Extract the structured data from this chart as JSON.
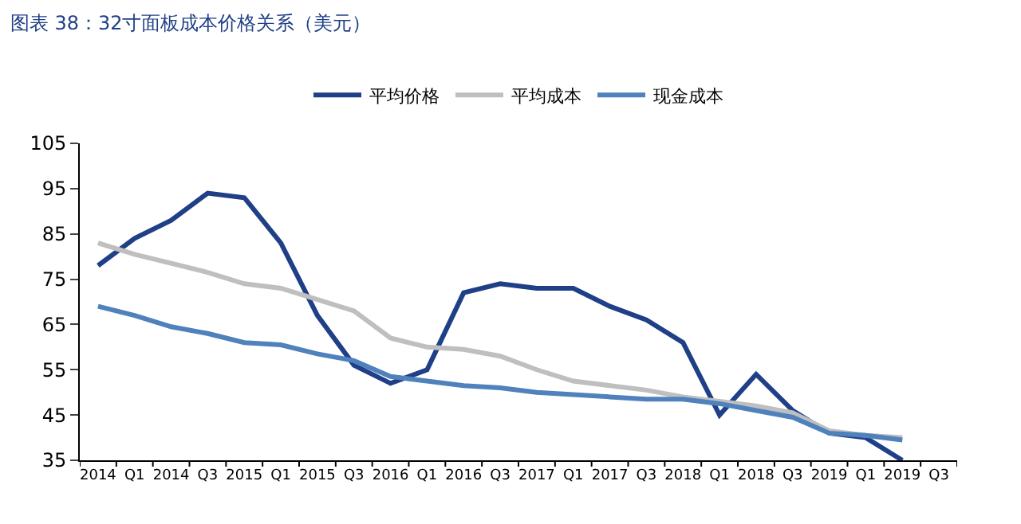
{
  "chart_data": {
    "type": "line",
    "title": "图表 38：32寸面板成本价格关系（美元）",
    "categories": [
      "2014",
      "Q1",
      "2014",
      "Q3",
      "2015",
      "Q1",
      "2015",
      "Q3",
      "2016",
      "Q1",
      "2016",
      "Q3",
      "2017",
      "Q1",
      "2017",
      "Q3",
      "2018",
      "Q1",
      "2018",
      "Q3",
      "2019",
      "Q1",
      "2019",
      "Q3"
    ],
    "series": [
      {
        "name": "平均价格",
        "color": "#1f3f87",
        "values": [
          78,
          84,
          88,
          94,
          93,
          83,
          67,
          56,
          52,
          55,
          72,
          74,
          73,
          73,
          69,
          66,
          61,
          45,
          54,
          46,
          41,
          40,
          35,
          null
        ]
      },
      {
        "name": "平均成本",
        "color": "#bfbfbf",
        "values": [
          83,
          80.5,
          78.5,
          76.5,
          74,
          73,
          70.5,
          68,
          62,
          60,
          59.5,
          58,
          55,
          52.5,
          51.5,
          50.5,
          49,
          48,
          47,
          45.5,
          41.5,
          40.5,
          40,
          null
        ]
      },
      {
        "name": "现金成本",
        "color": "#4f81bd",
        "values": [
          69,
          67,
          64.5,
          63,
          61,
          60.5,
          58.5,
          57,
          53.5,
          52.5,
          51.5,
          51,
          50,
          49.5,
          49,
          48.5,
          48.5,
          47.5,
          46,
          44.5,
          41,
          40.5,
          39.5,
          null
        ]
      }
    ],
    "ylim": [
      35,
      105
    ],
    "yticks": [
      35,
      45,
      55,
      65,
      75,
      85,
      95,
      105
    ],
    "legend": "top",
    "marker": "none",
    "line_style": "solid"
  }
}
